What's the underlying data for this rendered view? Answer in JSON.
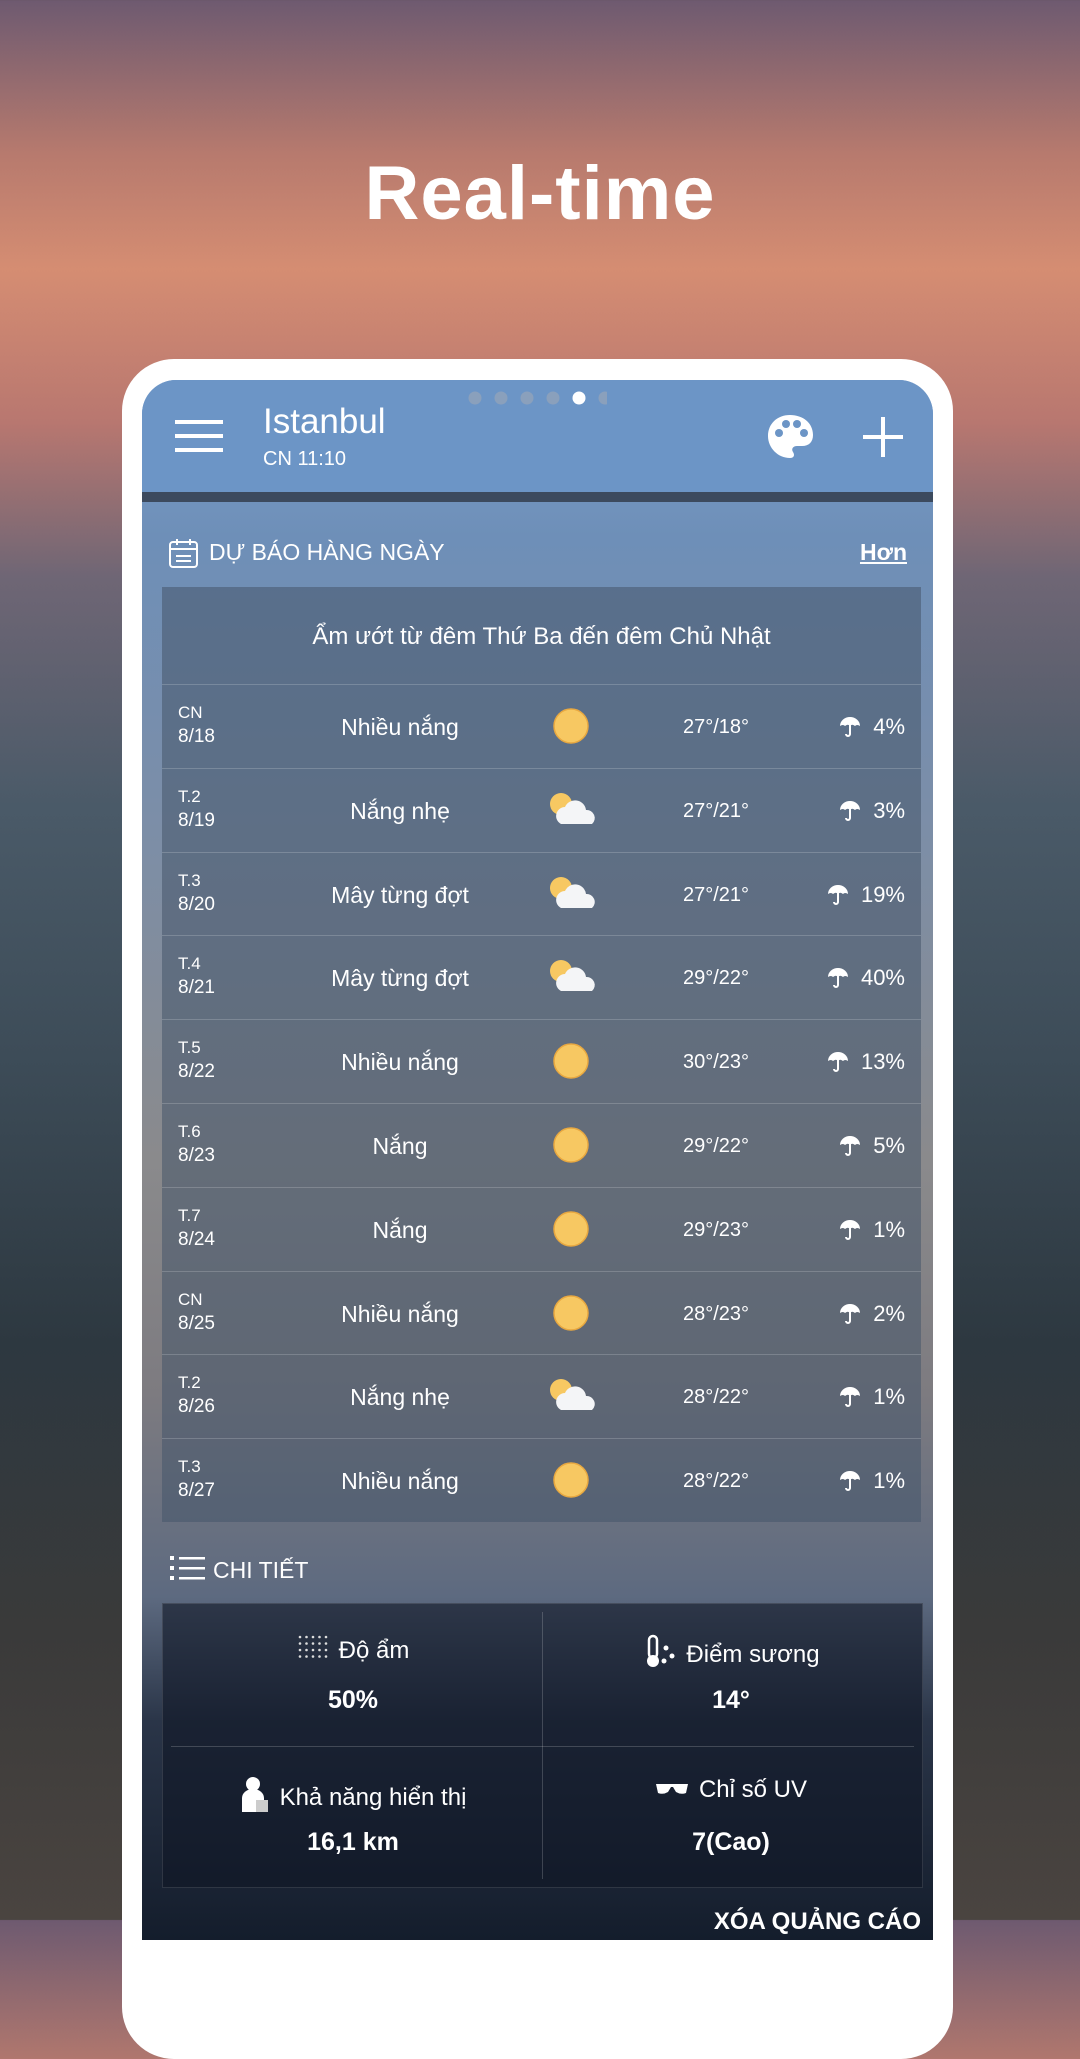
{
  "headline": "Real-time",
  "app_bar": {
    "city": "Istanbul",
    "time": "CN 11:10"
  },
  "daily": {
    "title": "DỰ BÁO HÀNG NGÀY",
    "more": "Hơn",
    "summary": "Ẩm ướt từ đêm Thứ Ba đến đêm Chủ Nhật",
    "rows": [
      {
        "day": "CN",
        "date": "8/18",
        "condition": "Nhiều nắng",
        "icon": "sun",
        "temp": "27°/18°",
        "precip": "4%"
      },
      {
        "day": "T.2",
        "date": "8/19",
        "condition": "Nắng nhẹ",
        "icon": "partly",
        "temp": "27°/21°",
        "precip": "3%"
      },
      {
        "day": "T.3",
        "date": "8/20",
        "condition": "Mây từng đợt",
        "icon": "partly",
        "temp": "27°/21°",
        "precip": "19%"
      },
      {
        "day": "T.4",
        "date": "8/21",
        "condition": "Mây từng đợt",
        "icon": "partly",
        "temp": "29°/22°",
        "precip": "40%"
      },
      {
        "day": "T.5",
        "date": "8/22",
        "condition": "Nhiều nắng",
        "icon": "sun",
        "temp": "30°/23°",
        "precip": "13%"
      },
      {
        "day": "T.6",
        "date": "8/23",
        "condition": "Nắng",
        "icon": "sun",
        "temp": "29°/22°",
        "precip": "5%"
      },
      {
        "day": "T.7",
        "date": "8/24",
        "condition": "Nắng",
        "icon": "sun",
        "temp": "29°/23°",
        "precip": "1%"
      },
      {
        "day": "CN",
        "date": "8/25",
        "condition": "Nhiều nắng",
        "icon": "sun",
        "temp": "28°/23°",
        "precip": "2%"
      },
      {
        "day": "T.2",
        "date": "8/26",
        "condition": "Nắng nhẹ",
        "icon": "partly",
        "temp": "28°/22°",
        "precip": "1%"
      },
      {
        "day": "T.3",
        "date": "8/27",
        "condition": "Nhiều nắng",
        "icon": "sun",
        "temp": "28°/22°",
        "precip": "1%"
      }
    ]
  },
  "details": {
    "title": "CHI TIẾT",
    "items": [
      {
        "label": "Độ ẩm",
        "value": "50%"
      },
      {
        "label": "Điểm sương",
        "value": "14°"
      },
      {
        "label": "Khả năng hiển thị",
        "value": "16,1 km"
      },
      {
        "label": "Chỉ số UV",
        "value": "7(Cao)"
      }
    ]
  },
  "footer": "XÓA QUẢNG CÁO"
}
